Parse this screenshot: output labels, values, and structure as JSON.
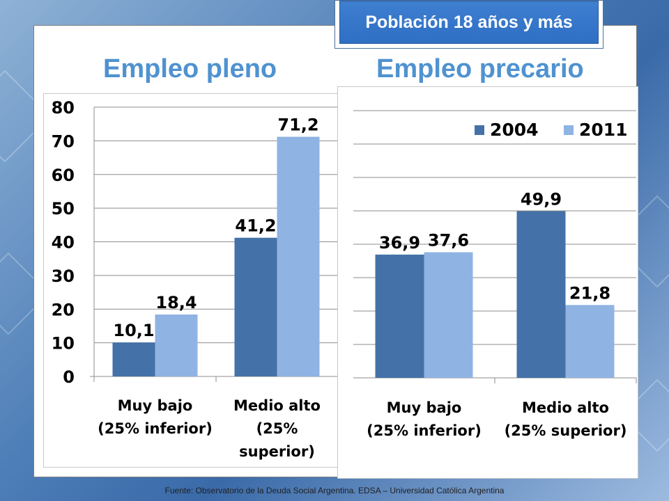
{
  "badge": "Población 18 años y más",
  "headings": {
    "left": "Empleo pleno",
    "right": "Empleo precario"
  },
  "footer": "Fuente:   Observatorio de  la Deuda Social Argentina. EDSA  – Universidad Católica Argentina",
  "colors": {
    "s2004": "#4472a8",
    "s2011": "#8fb3e3",
    "grid": "#8c8c8c",
    "text": "#000000"
  },
  "chart_data": [
    {
      "type": "bar",
      "title": "Empleo pleno",
      "categories": [
        [
          "Muy bajo",
          "(25% inferior)"
        ],
        [
          "Medio alto",
          "(25%",
          "superior)"
        ]
      ],
      "series": [
        {
          "name": "2004",
          "values": [
            10.1,
            41.2
          ],
          "labels": [
            "10,1",
            "41,2"
          ]
        },
        {
          "name": "2011",
          "values": [
            18.4,
            71.2
          ],
          "labels": [
            "18,4",
            "71,2"
          ]
        }
      ],
      "yticks": [
        "0",
        "10",
        "20",
        "30",
        "40",
        "50",
        "60",
        "70",
        "80"
      ],
      "ylim": [
        0,
        80
      ],
      "grid": true
    },
    {
      "type": "bar",
      "title": "Empleo precario",
      "categories": [
        [
          "Muy bajo",
          "(25% inferior)"
        ],
        [
          "Medio alto",
          "(25% superior)"
        ]
      ],
      "series": [
        {
          "name": "2004",
          "values": [
            36.9,
            49.9
          ],
          "labels": [
            "36,9",
            "49,9"
          ]
        },
        {
          "name": "2011",
          "values": [
            37.6,
            21.8
          ],
          "labels": [
            "37,6",
            "21,8"
          ]
        }
      ],
      "ylim": [
        0,
        80
      ],
      "legend": [
        "2004",
        "2011"
      ],
      "legend_position": "top-right",
      "grid": true
    }
  ]
}
